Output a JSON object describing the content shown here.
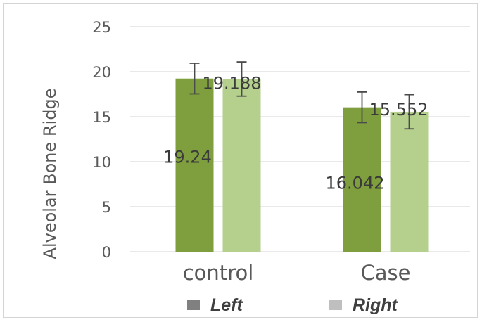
{
  "chart_data": {
    "type": "bar",
    "title": "",
    "xlabel": "",
    "ylabel": "Alveolar Bone Ridge",
    "categories": [
      "control",
      "Case"
    ],
    "ylim": [
      0,
      25
    ],
    "yticks": [
      0,
      5,
      10,
      15,
      20,
      25
    ],
    "grid": true,
    "legend_position": "bottom",
    "series": [
      {
        "name": "Left",
        "values": [
          19.24,
          16.042
        ],
        "error": [
          1.7,
          1.7
        ],
        "data_labels": [
          "19.24",
          "16.042"
        ],
        "color": "#7f9f3e",
        "legend_color": "#808080"
      },
      {
        "name": "Right",
        "values": [
          19.188,
          15.552
        ],
        "error": [
          1.9,
          1.9
        ],
        "data_labels": [
          "19.188",
          "15.552"
        ],
        "color": "#b5cf8c",
        "legend_color": "#bfbfbf"
      }
    ]
  }
}
